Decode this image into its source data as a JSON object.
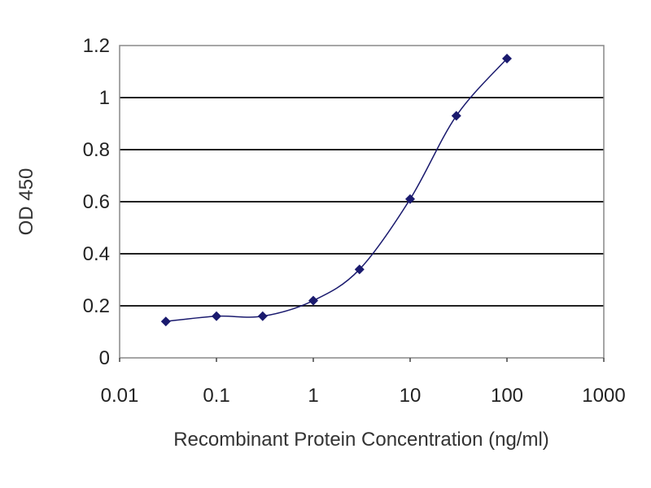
{
  "chart_data": {
    "type": "line",
    "title": "",
    "xlabel": "Recombinant Protein Concentration (ng/ml)",
    "ylabel": "OD 450",
    "x_scale": "log",
    "xlim": [
      0.01,
      1000
    ],
    "ylim": [
      0,
      1.2
    ],
    "x_ticks": [
      "0.01",
      "0.1",
      "1",
      "10",
      "100",
      "1000"
    ],
    "x_tick_values": [
      0.01,
      0.1,
      1,
      10,
      100,
      1000
    ],
    "y_ticks": [
      "0",
      "0.2",
      "0.4",
      "0.6",
      "0.8",
      "1",
      "1.2"
    ],
    "y_tick_values": [
      0,
      0.2,
      0.4,
      0.6,
      0.8,
      1,
      1.2
    ],
    "grid": "horizontal",
    "legend": "none",
    "series": [
      {
        "x": [
          0.03,
          0.1,
          0.3,
          1,
          3,
          10,
          30,
          100
        ],
        "y": [
          0.14,
          0.16,
          0.16,
          0.22,
          0.34,
          0.61,
          0.93,
          1.15
        ],
        "color": "#1a1a6e",
        "marker": "diamond",
        "smooth": true
      }
    ]
  }
}
